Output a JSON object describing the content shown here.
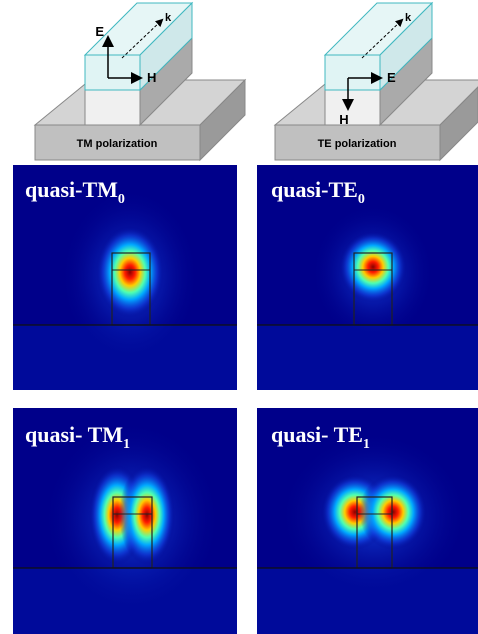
{
  "diagrams": [
    {
      "e_label": "E",
      "k_label": "k",
      "h_label": "H",
      "caption": "TM polarization"
    },
    {
      "e_label": "E",
      "k_label": "k",
      "h_label": "H",
      "caption": "TE polarization"
    }
  ],
  "modes": [
    {
      "name": "quasi-TM",
      "subscript": "0"
    },
    {
      "name": "quasi-TE",
      "subscript": "0"
    },
    {
      "name": "quasi- TM",
      "subscript": "1"
    },
    {
      "name": "quasi- TE",
      "subscript": "1"
    }
  ]
}
